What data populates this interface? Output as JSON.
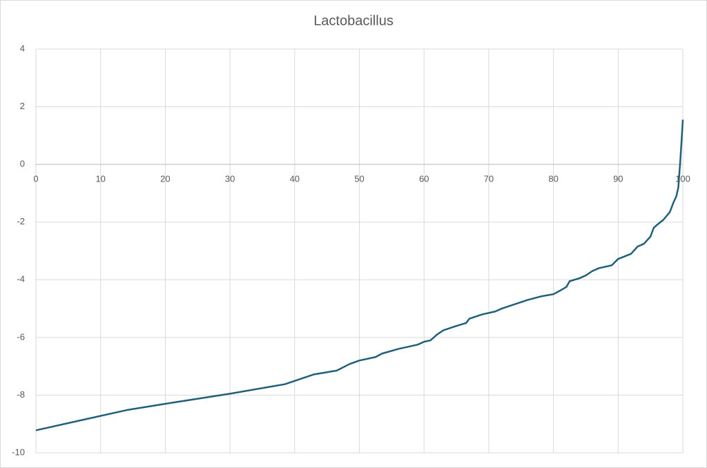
{
  "chart_data": {
    "type": "line",
    "title": "Lactobacillus",
    "x": [
      0,
      14,
      20,
      30,
      38.5,
      43,
      46.5,
      48.5,
      50,
      52.5,
      53.5,
      56,
      59,
      60,
      61,
      62,
      63,
      65,
      66.5,
      67,
      69,
      71,
      72,
      74,
      76,
      78,
      80,
      81,
      82,
      82.5,
      84,
      85,
      86,
      87,
      89,
      90,
      92,
      93,
      94,
      95,
      95.5,
      96,
      97,
      98,
      98.5,
      99,
      99.3,
      99.6,
      99.8,
      100
    ],
    "values": [
      -9.22,
      -8.52,
      -8.3,
      -7.95,
      -7.62,
      -7.28,
      -7.15,
      -6.92,
      -6.8,
      -6.68,
      -6.56,
      -6.4,
      -6.25,
      -6.15,
      -6.1,
      -5.9,
      -5.75,
      -5.6,
      -5.5,
      -5.35,
      -5.2,
      -5.1,
      -5.0,
      -4.85,
      -4.7,
      -4.58,
      -4.5,
      -4.38,
      -4.25,
      -4.05,
      -3.95,
      -3.85,
      -3.7,
      -3.6,
      -3.5,
      -3.28,
      -3.1,
      -2.85,
      -2.75,
      -2.5,
      -2.2,
      -2.1,
      -1.92,
      -1.65,
      -1.35,
      -1.1,
      -0.8,
      0.1,
      0.8,
      1.55
    ],
    "color": "#1f5f7a",
    "xlim": [
      0,
      100
    ],
    "xticks": [
      0,
      10,
      20,
      30,
      40,
      50,
      60,
      70,
      80,
      90,
      100
    ],
    "ylim": [
      -10,
      4
    ],
    "yticks": [
      -10,
      -8,
      -6,
      -4,
      -2,
      0,
      2,
      4
    ],
    "grid": true
  }
}
